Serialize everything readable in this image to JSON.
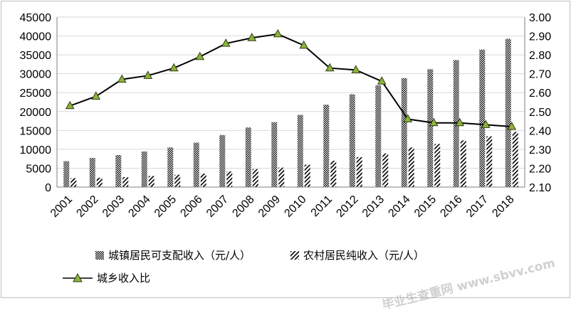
{
  "chart_data": {
    "type": "bar",
    "categories": [
      "2001",
      "2002",
      "2003",
      "2004",
      "2005",
      "2006",
      "2007",
      "2008",
      "2009",
      "2010",
      "2011",
      "2012",
      "2013",
      "2014",
      "2015",
      "2016",
      "2017",
      "2018"
    ],
    "series": [
      {
        "name": "城镇居民可支配收入（元/人）",
        "type": "bar",
        "axis": "left",
        "pattern": "checker",
        "values": [
          6860,
          7703,
          8472,
          9422,
          10493,
          11759,
          13786,
          15781,
          17175,
          19109,
          21810,
          24565,
          26955,
          28844,
          31195,
          33616,
          36396,
          39251
        ]
      },
      {
        "name": "农村居民纯收入（元/人）",
        "type": "bar",
        "axis": "left",
        "pattern": "diagonal",
        "values": [
          2366,
          2476,
          2622,
          2936,
          3255,
          3587,
          4140,
          4761,
          5153,
          5919,
          6977,
          7917,
          8896,
          10489,
          11422,
          12363,
          13432,
          14617
        ]
      },
      {
        "name": "城乡收入比",
        "type": "line",
        "axis": "right",
        "marker": "triangle",
        "values": [
          2.53,
          2.58,
          2.67,
          2.69,
          2.73,
          2.79,
          2.86,
          2.89,
          2.91,
          2.85,
          2.73,
          2.72,
          2.66,
          2.46,
          2.44,
          2.44,
          2.43,
          2.42
        ]
      }
    ],
    "y_left": {
      "ylim": [
        0,
        45000
      ],
      "ticks": [
        "0",
        "5000",
        "10000",
        "15000",
        "20000",
        "25000",
        "30000",
        "35000",
        "40000",
        "45000"
      ]
    },
    "y_right": {
      "ylim": [
        2.1,
        3.0
      ],
      "ticks": [
        "2.10",
        "2.20",
        "2.30",
        "2.40",
        "2.50",
        "2.60",
        "2.70",
        "2.80",
        "2.90",
        "3.00"
      ]
    },
    "grid": true,
    "legend_position": "bottom",
    "colors": {
      "bar_fill": "#000000",
      "line": "#000000",
      "marker_fill": "#8db33d",
      "marker_stroke": "#2f3f10",
      "grid": "#d9d9d9"
    }
  },
  "watermark_text": "毕业生查重网 www.sbvv.com"
}
